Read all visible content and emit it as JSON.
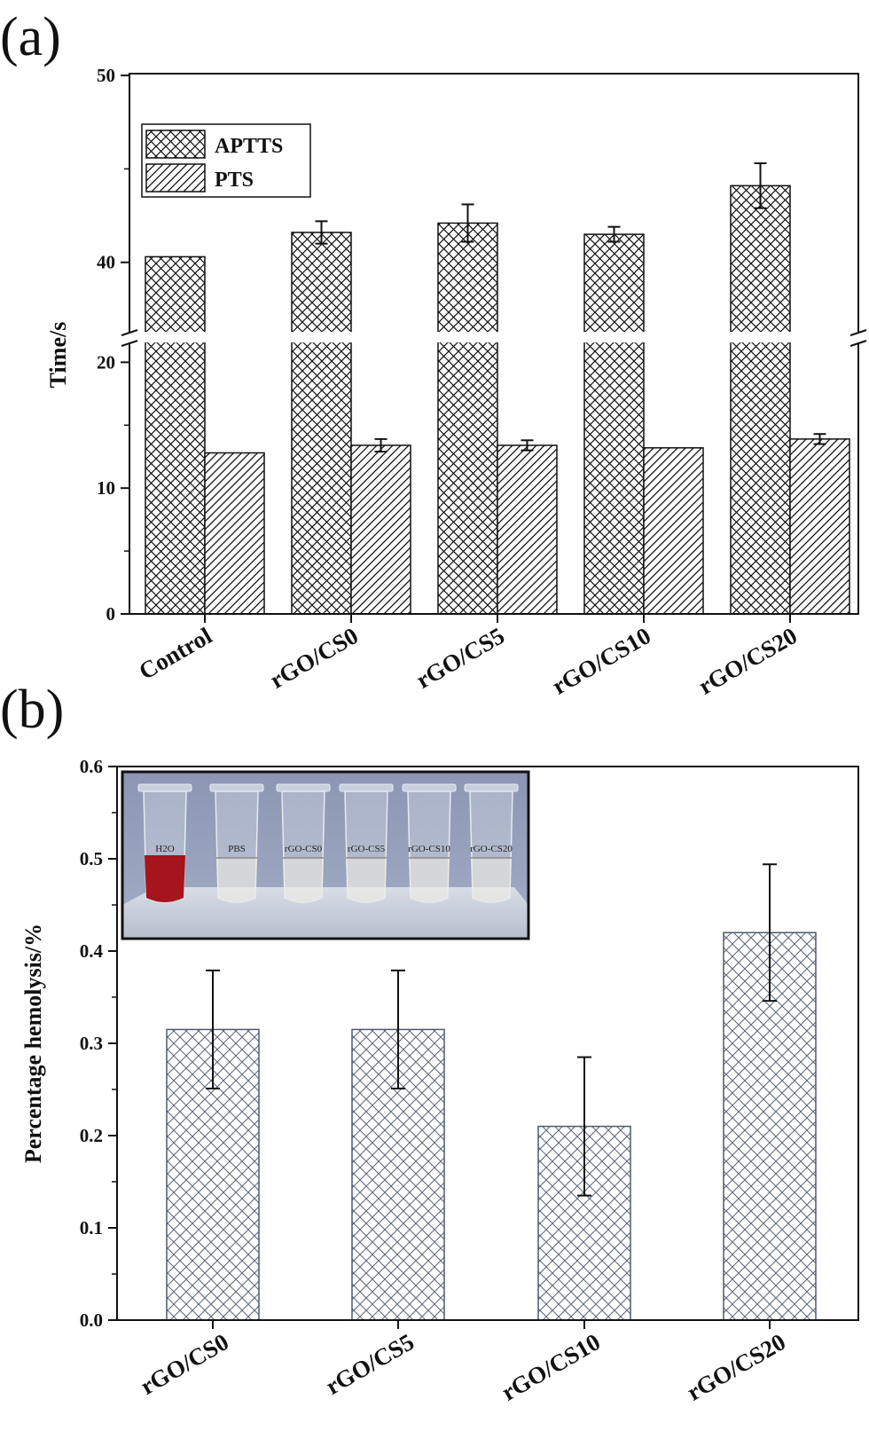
{
  "chart_data": [
    {
      "panel": "(a)",
      "type": "bar",
      "ylabel": "Time/s",
      "categories": [
        "Control",
        "rGO/CS0",
        "rGO/CS5",
        "rGO/CS10",
        "rGO/CS20"
      ],
      "y_axis_break": [
        22,
        36
      ],
      "yticks": [
        0,
        10,
        20,
        40,
        50
      ],
      "legend_position": "top-left",
      "series": [
        {
          "name": "APTTS",
          "pattern": "cross-hatch",
          "values": [
            40.3,
            41.6,
            42.1,
            41.5,
            44.1
          ],
          "errors": [
            0,
            0.6,
            1.0,
            0.4,
            1.2
          ]
        },
        {
          "name": "PTS",
          "pattern": "diagonal-hatch",
          "values": [
            12.8,
            13.4,
            13.4,
            13.2,
            13.9
          ],
          "errors": [
            0,
            0.5,
            0.4,
            0,
            0.4
          ]
        }
      ]
    },
    {
      "panel": "(b)",
      "type": "bar",
      "ylabel": "Percentage hemolysis/%",
      "categories": [
        "rGO/CS0",
        "rGO/CS5",
        "rGO/CS10",
        "rGO/CS20"
      ],
      "ylim": [
        0,
        0.6
      ],
      "yticks": [
        "0.0",
        "0.1",
        "0.2",
        "0.3",
        "0.4",
        "0.5",
        "0.6"
      ],
      "series": [
        {
          "pattern": "cross-hatch",
          "values": [
            0.315,
            0.315,
            0.21,
            0.42
          ],
          "errors": [
            0.064,
            0.064,
            0.075,
            0.074
          ]
        }
      ],
      "inset": {
        "tube_labels": [
          "H2O",
          "PBS",
          "rGO-CS0",
          "rGO-CS5",
          "rGO-CS10",
          "rGO-CS20"
        ]
      }
    }
  ]
}
